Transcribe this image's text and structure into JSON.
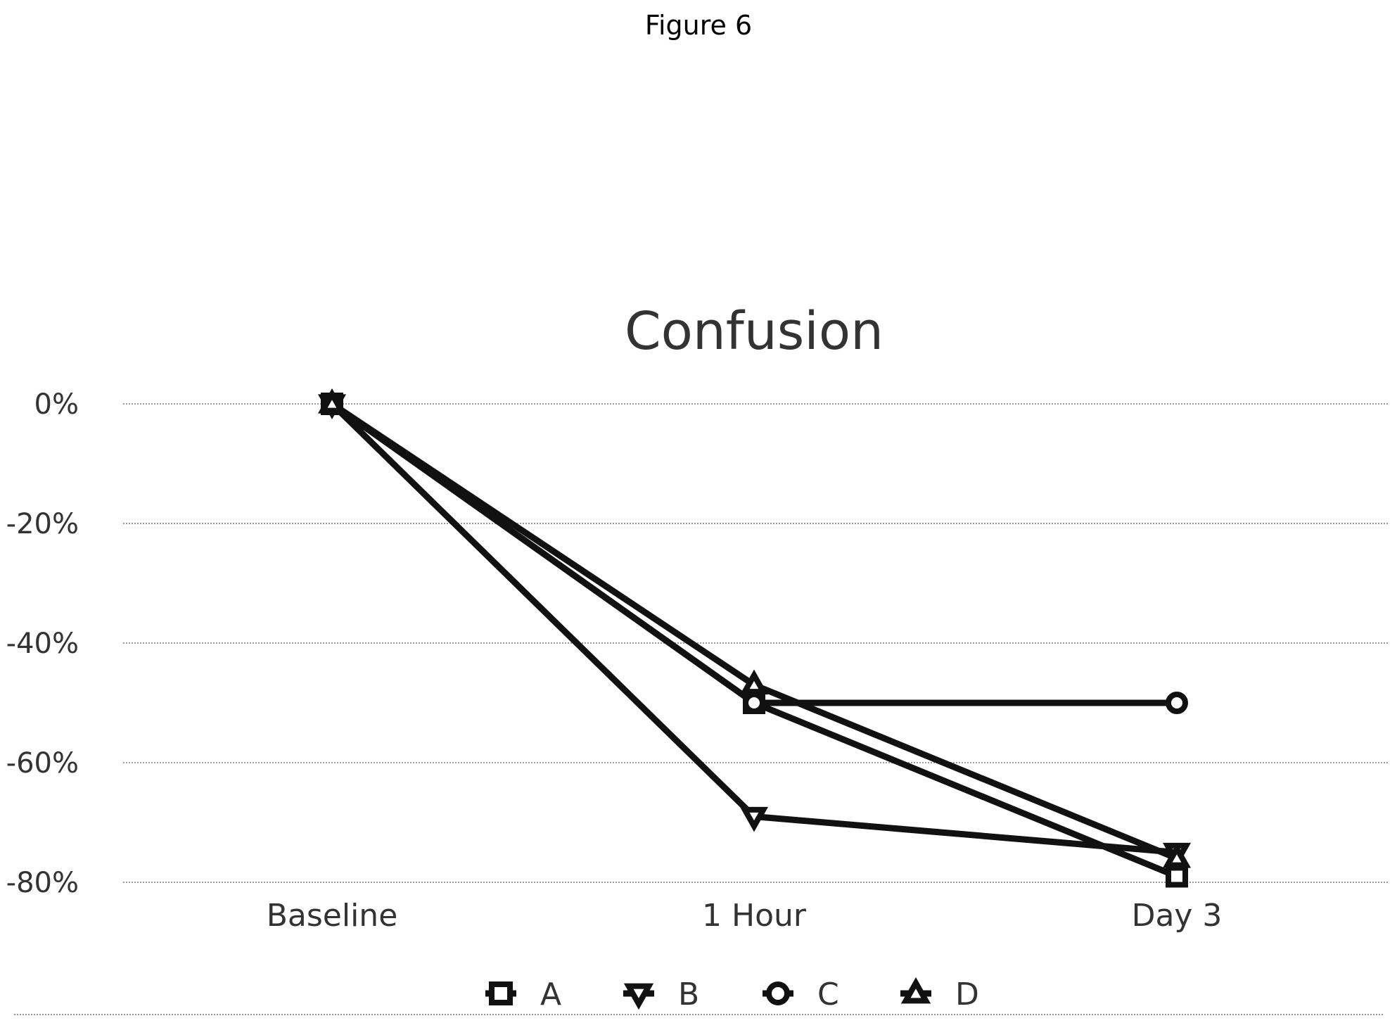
{
  "figure_label": "Figure 6",
  "chart_data": {
    "type": "line",
    "title": "Confusion",
    "categories": [
      "Baseline",
      "1 Hour",
      "Day 3"
    ],
    "series": [
      {
        "name": "A",
        "marker": "square",
        "values": [
          0,
          -50,
          -79
        ]
      },
      {
        "name": "B",
        "marker": "triangle-down",
        "values": [
          0,
          -69,
          -75
        ]
      },
      {
        "name": "C",
        "marker": "circle",
        "values": [
          0,
          -50,
          -50
        ]
      },
      {
        "name": "D",
        "marker": "triangle-up",
        "values": [
          0,
          -47,
          -76
        ]
      }
    ],
    "yticks": [
      0,
      -20,
      -40,
      -60,
      -80
    ],
    "ytick_labels": [
      "0%",
      "-20%",
      "-40%",
      "-60%",
      "-80%"
    ],
    "ylim": [
      -80,
      0
    ],
    "grid": true,
    "legend": "bottom",
    "colors": {
      "line": "#111111",
      "grid": "#9a9a9a",
      "text": "#333333"
    }
  }
}
